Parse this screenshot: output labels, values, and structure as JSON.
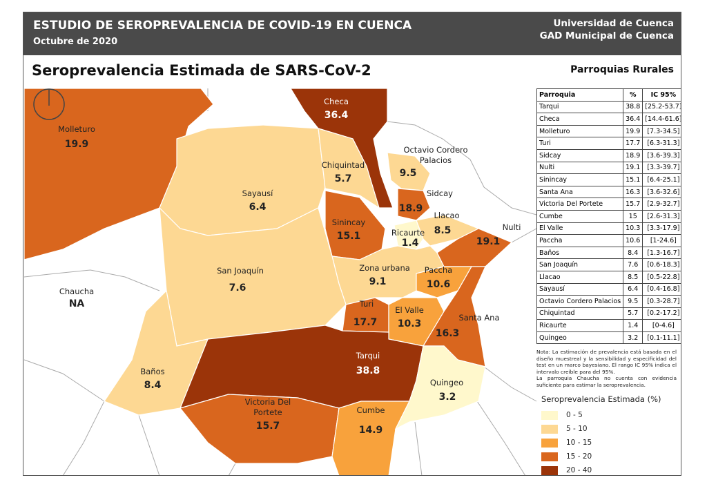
{
  "header": {
    "title": "ESTUDIO DE SEROPREVALENCIA DE COVID-19 EN CUENCA",
    "date": "Octubre de 2020",
    "organizations": [
      "Universidad de Cuenca",
      "GAD Municipal de Cuenca"
    ]
  },
  "map_title": "Seroprevalencia Estimada de SARS-CoV-2",
  "map_subtitle": "Parroquias Rurales",
  "regions": [
    {
      "name": "Molleturo",
      "value": "19.9",
      "color": "#d9661e"
    },
    {
      "name": "Chaucha",
      "value": "NA",
      "color": "#ffffff"
    },
    {
      "name": "Sayausí",
      "value": "6.4",
      "color": "#fdd893"
    },
    {
      "name": "Checa",
      "value": "36.4",
      "color": "#9b3409"
    },
    {
      "name": "Chiquintad",
      "value": "5.7",
      "color": "#fdd893"
    },
    {
      "name": [
        "Octavio Cordero",
        "Palacios"
      ],
      "value": "9.5",
      "color": "#fdd893"
    },
    {
      "name": "Sidcay",
      "value": "18.9",
      "color": "#d9661e"
    },
    {
      "name": "Sinincay",
      "value": "15.1",
      "color": "#d9661e"
    },
    {
      "name": "Ricaurte",
      "value": "1.4",
      "color": "#fff8cc"
    },
    {
      "name": "Llacao",
      "value": "8.5",
      "color": "#fdd893"
    },
    {
      "name": "Nulti",
      "value": "19.1",
      "color": "#d9661e"
    },
    {
      "name": "Zona urbana",
      "value": "9.1",
      "color": "#fdd893"
    },
    {
      "name": "San Joaquín",
      "value": "7.6",
      "color": "#fdd893"
    },
    {
      "name": "Paccha",
      "value": "10.6",
      "color": "#f8a23c"
    },
    {
      "name": "Turi",
      "value": "17.7",
      "color": "#d9661e"
    },
    {
      "name": "El Valle",
      "value": "10.3",
      "color": "#f8a23c"
    },
    {
      "name": "Santa Ana",
      "value": "16.3",
      "color": "#d9661e"
    },
    {
      "name": "Tarqui",
      "value": "38.8",
      "color": "#9b3409"
    },
    {
      "name": "Baños",
      "value": "8.4",
      "color": "#fdd893"
    },
    {
      "name": [
        "Victoria Del",
        "Portete"
      ],
      "value": "15.7",
      "color": "#d9661e"
    },
    {
      "name": "Cumbe",
      "value": "14.9",
      "color": "#f8a23c"
    },
    {
      "name": "Quingeo",
      "value": "3.2",
      "color": "#fff8cc"
    }
  ],
  "table": {
    "header": [
      "Parroquia",
      "%",
      "IC 95%"
    ],
    "rows": [
      [
        "Tarqui",
        "38.8",
        "[25.2-53.7]"
      ],
      [
        "Checa",
        "36.4",
        "[14.4-61.6]"
      ],
      [
        "Molleturo",
        "19.9",
        "[7.3-34.5]"
      ],
      [
        "Turi",
        "17.7",
        "[6.3-31.3]"
      ],
      [
        "Sidcay",
        "18.9",
        "[3.6-39.3]"
      ],
      [
        "Nulti",
        "19.1",
        "[3.3-39.7]"
      ],
      [
        "Sinincay",
        "15.1",
        "[6.4-25.1]"
      ],
      [
        "Santa Ana",
        "16.3",
        "[3.6-32.6]"
      ],
      [
        "Victoria Del Portete",
        "15.7",
        "[2.9-32.7]"
      ],
      [
        "Cumbe",
        "15",
        "[2.6-31.3]"
      ],
      [
        "El Valle",
        "10.3",
        "[3.3-17.9]"
      ],
      [
        "Paccha",
        "10.6",
        "[1-24.6]"
      ],
      [
        "Baños",
        "8.4",
        "[1.3-16.7]"
      ],
      [
        "San Joaquín",
        "7.6",
        "[0.6-18.3]"
      ],
      [
        "Llacao",
        "8.5",
        "[0.5-22.8]"
      ],
      [
        "Sayausí",
        "6.4",
        "[0.4-16.8]"
      ],
      [
        "Octavio Cordero Palacios",
        "9.5",
        "[0.3-28.7]"
      ],
      [
        "Chiquintad",
        "5.7",
        "[0.2-17.2]"
      ],
      [
        "Ricaurte",
        "1.4",
        "[0-4.6]"
      ],
      [
        "Quingeo",
        "3.2",
        "[0.1-11.1]"
      ]
    ]
  },
  "note": [
    "Nota: La estimación de prevalencia está basada en el diseño muestreal y la sensibilidad y especificidad del test en un marco bayesiano. El rango IC 95% indica el intervalo creíble para del 95%.",
    "La parroquia Chaucha no cuenta con evidencia suficiente para estimar la seroprevalencia."
  ],
  "legend": {
    "title": "Seroprevalencia Estimada (%)",
    "items": [
      {
        "label": "0 - 5",
        "color": "#fff8cc"
      },
      {
        "label": "5 - 10",
        "color": "#fdd893"
      },
      {
        "label": "10 - 15",
        "color": "#f8a23c"
      },
      {
        "label": "15 - 20",
        "color": "#d9661e"
      },
      {
        "label": "20 - 40",
        "color": "#9b3409"
      }
    ]
  }
}
